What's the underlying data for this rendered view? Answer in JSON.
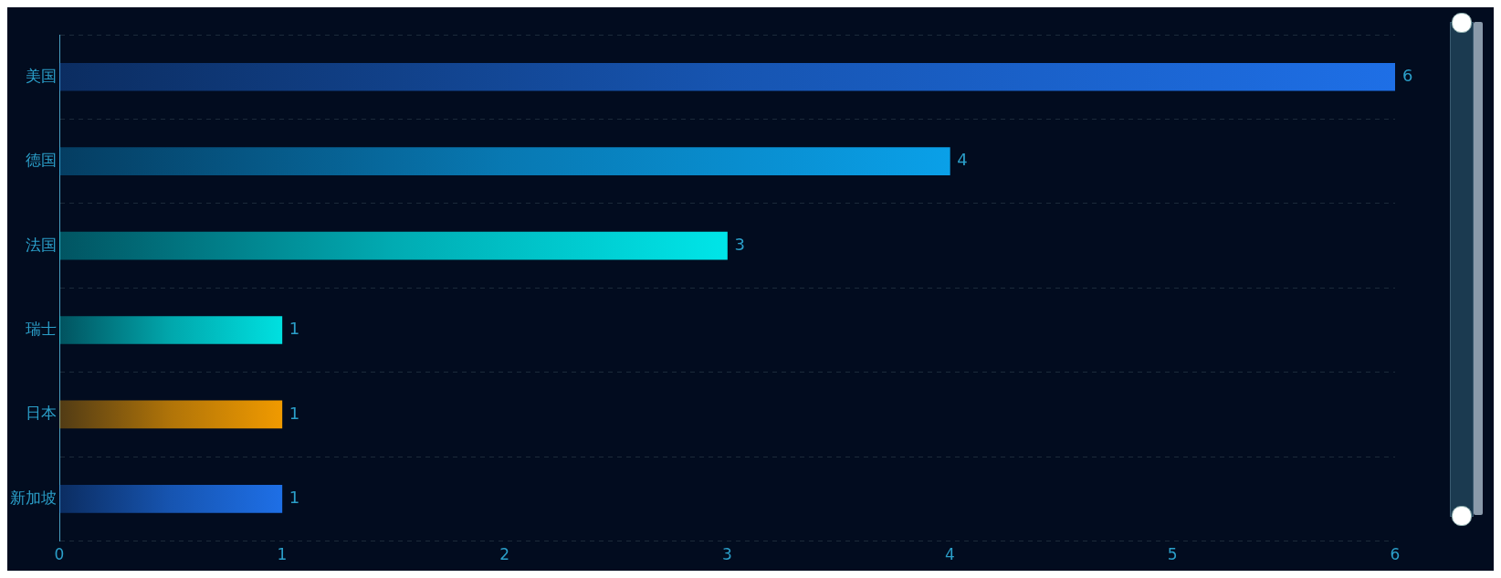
{
  "chart_data": {
    "type": "bar",
    "orientation": "horizontal",
    "categories": [
      "美国",
      "德国",
      "法国",
      "瑞士",
      "日本",
      "新加坡"
    ],
    "values": [
      6,
      4,
      3,
      1,
      1,
      1
    ],
    "colors": [
      "#1e6fe6",
      "#0aa0e8",
      "#00e5e8",
      "#00e0e0",
      "#f09a00",
      "#1e6fe6"
    ],
    "xlim": [
      0,
      6
    ],
    "xticks": [
      0,
      1,
      2,
      3,
      4,
      5,
      6
    ],
    "grid": "y",
    "data_labels": true,
    "legend": false
  }
}
